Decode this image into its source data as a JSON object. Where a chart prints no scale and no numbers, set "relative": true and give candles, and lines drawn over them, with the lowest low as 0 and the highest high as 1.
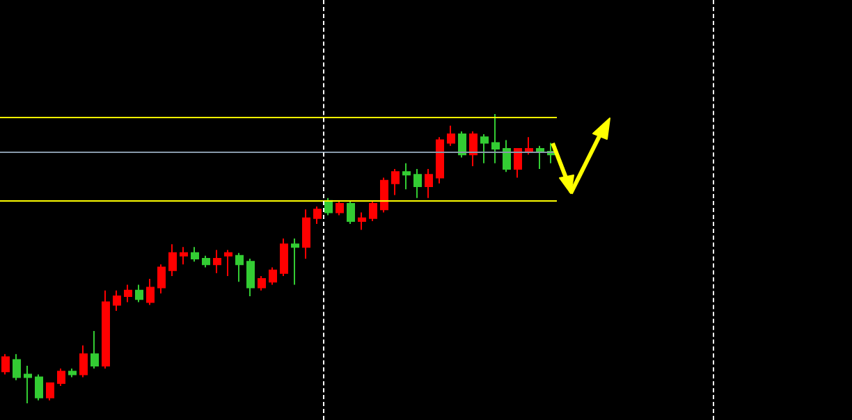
{
  "chart_data": {
    "type": "candlestick",
    "relative": true,
    "categories": [
      null,
      null,
      null,
      null,
      null,
      null,
      null,
      null,
      null,
      null,
      null,
      null,
      null,
      null,
      null,
      null,
      null,
      null,
      null,
      null,
      null,
      null,
      null,
      null,
      null,
      null,
      null,
      null,
      null,
      null,
      null,
      null,
      null,
      null,
      null,
      null,
      null,
      null,
      null,
      null,
      null,
      null,
      null,
      null,
      null,
      null,
      null,
      null,
      null,
      null
    ],
    "ohlc": [
      [
        0.11,
        0.17,
        0.1,
        0.16
      ],
      [
        0.15,
        0.17,
        0.08,
        0.09
      ],
      [
        0.1,
        0.13,
        0,
        0.09
      ],
      [
        0.09,
        0.1,
        0.01,
        0.02
      ],
      [
        0.02,
        0.07,
        0.01,
        0.07
      ],
      [
        0.07,
        0.12,
        0.06,
        0.11
      ],
      [
        0.11,
        0.12,
        0.09,
        0.1
      ],
      [
        0.1,
        0.2,
        0.09,
        0.17
      ],
      [
        0.17,
        0.25,
        0.12,
        0.13
      ],
      [
        0.13,
        0.39,
        0.12,
        0.35
      ],
      [
        0.34,
        0.39,
        0.32,
        0.37
      ],
      [
        0.37,
        0.41,
        0.35,
        0.39
      ],
      [
        0.39,
        0.41,
        0.35,
        0.36
      ],
      [
        0.35,
        0.43,
        0.34,
        0.4
      ],
      [
        0.4,
        0.48,
        0.38,
        0.47
      ],
      [
        0.46,
        0.55,
        0.44,
        0.52
      ],
      [
        0.51,
        0.54,
        0.48,
        0.52
      ],
      [
        0.52,
        0.54,
        0.49,
        0.5
      ],
      [
        0.5,
        0.51,
        0.47,
        0.48
      ],
      [
        0.48,
        0.53,
        0.45,
        0.5
      ],
      [
        0.51,
        0.53,
        0.44,
        0.52
      ],
      [
        0.51,
        0.52,
        0.42,
        0.48
      ],
      [
        0.49,
        0.5,
        0.37,
        0.4
      ],
      [
        0.4,
        0.44,
        0.39,
        0.43
      ],
      [
        0.42,
        0.47,
        0.41,
        0.46
      ],
      [
        0.45,
        0.57,
        0.44,
        0.55
      ],
      [
        0.55,
        0.57,
        0.41,
        0.54
      ],
      [
        0.54,
        0.67,
        0.5,
        0.64
      ],
      [
        0.64,
        0.68,
        0.62,
        0.67
      ],
      [
        0.7,
        0.71,
        0.65,
        0.66
      ],
      [
        0.66,
        0.7,
        0.65,
        0.69
      ],
      [
        0.69,
        0.7,
        0.62,
        0.63
      ],
      [
        0.63,
        0.66,
        0.6,
        0.64
      ],
      [
        0.64,
        0.7,
        0.63,
        0.69
      ],
      [
        0.67,
        0.78,
        0.66,
        0.77
      ],
      [
        0.76,
        0.81,
        0.72,
        0.8
      ],
      [
        0.8,
        0.83,
        0.74,
        0.79
      ],
      [
        0.79,
        0.81,
        0.71,
        0.75
      ],
      [
        0.75,
        0.81,
        0.71,
        0.79
      ],
      [
        0.78,
        0.92,
        0.76,
        0.91
      ],
      [
        0.9,
        0.96,
        0.89,
        0.93
      ],
      [
        0.93,
        0.94,
        0.85,
        0.86
      ],
      [
        0.86,
        0.94,
        0.82,
        0.93
      ],
      [
        0.92,
        0.93,
        0.83,
        0.9
      ],
      [
        0.9,
        1,
        0.83,
        0.88
      ],
      [
        0.88,
        0.91,
        0.8,
        0.81
      ],
      [
        0.81,
        0.88,
        0.78,
        0.88
      ],
      [
        0.87,
        0.92,
        0.86,
        0.88
      ],
      [
        0.88,
        0.89,
        0.81,
        0.87
      ],
      [
        0.87,
        0.9,
        0.83,
        0.86
      ]
    ],
    "colors": [
      "#ff0000",
      "#33cc33",
      "#33cc33",
      "#33cc33",
      "#ff0000",
      "#ff0000",
      "#33cc33",
      "#ff0000",
      "#33cc33",
      "#ff0000",
      "#ff0000",
      "#ff0000",
      "#33cc33",
      "#ff0000",
      "#ff0000",
      "#ff0000",
      "#ff0000",
      "#33cc33",
      "#33cc33",
      "#ff0000",
      "#ff0000",
      "#33cc33",
      "#33cc33",
      "#ff0000",
      "#ff0000",
      "#ff0000",
      "#33cc33",
      "#ff0000",
      "#ff0000",
      "#33cc33",
      "#ff0000",
      "#33cc33",
      "#ff0000",
      "#ff0000",
      "#ff0000",
      "#ff0000",
      "#33cc33",
      "#33cc33",
      "#ff0000",
      "#ff0000",
      "#ff0000",
      "#33cc33",
      "#ff0000",
      "#33cc33",
      "#33cc33",
      "#33cc33",
      "#ff0000",
      "#ff0000",
      "#33cc33",
      "#33cc33"
    ],
    "ref_lines": [
      {
        "axis": "y",
        "value": 0.99,
        "color": "#ffff00"
      },
      {
        "axis": "y",
        "value": 0.87,
        "color": "#8899aa"
      },
      {
        "axis": "y",
        "value": 0.7,
        "color": "#ffff00"
      }
    ]
  }
}
